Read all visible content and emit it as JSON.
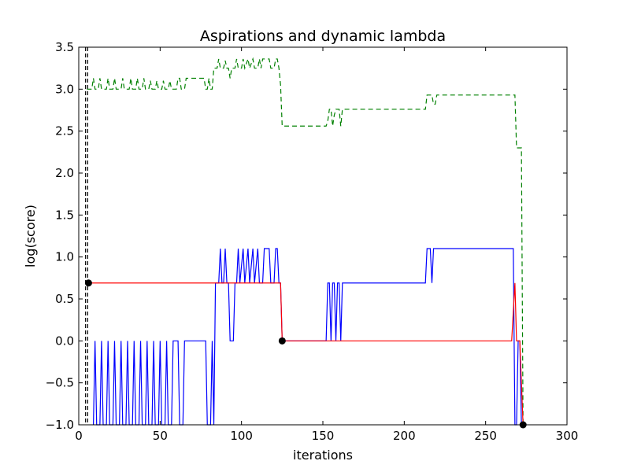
{
  "chart_data": {
    "type": "line",
    "title": "Aspirations and dynamic lambda",
    "xlabel": "iterations",
    "ylabel": "log(score)",
    "xlim": [
      0,
      300
    ],
    "ylim": [
      -1.0,
      3.5
    ],
    "grid": false,
    "legend": "none",
    "xticks": [
      0,
      50,
      100,
      150,
      200,
      250,
      300
    ],
    "yticks": [
      -1.0,
      -0.5,
      0.0,
      0.5,
      1.0,
      1.5,
      2.0,
      2.5,
      3.0,
      3.5
    ],
    "xtick_labels": [
      "0",
      "50",
      "100",
      "150",
      "200",
      "250",
      "300"
    ],
    "ytick_labels": [
      "−1.0",
      "−0.5",
      "0.0",
      "0.5",
      "1.0",
      "1.5",
      "2.0",
      "2.5",
      "3.0",
      "3.5"
    ],
    "vlines": [
      {
        "x": 4.2,
        "color": "#000000",
        "dash": true
      },
      {
        "x": 5.5,
        "color": "#000000",
        "dash": true
      }
    ],
    "series": [
      {
        "color": "#008000",
        "style": "dashed",
        "points": [
          [
            5,
            3
          ],
          [
            8,
            3
          ],
          [
            9,
            3.13
          ],
          [
            10,
            3
          ],
          [
            12,
            3
          ],
          [
            13,
            3.13
          ],
          [
            14,
            3
          ],
          [
            17,
            3
          ],
          [
            18,
            3.13
          ],
          [
            19,
            3
          ],
          [
            21,
            3
          ],
          [
            22,
            3.13
          ],
          [
            23,
            3
          ],
          [
            26,
            3
          ],
          [
            27,
            3.13
          ],
          [
            28,
            3
          ],
          [
            31,
            3
          ],
          [
            32,
            3.13
          ],
          [
            33,
            3
          ],
          [
            35,
            3
          ],
          [
            36,
            3.13
          ],
          [
            37,
            3
          ],
          [
            39,
            3
          ],
          [
            40,
            3.13
          ],
          [
            41,
            3
          ],
          [
            43,
            3
          ],
          [
            44,
            3.1
          ],
          [
            45,
            3
          ],
          [
            47,
            3
          ],
          [
            48,
            3.1
          ],
          [
            49,
            3
          ],
          [
            51,
            3
          ],
          [
            52,
            3.1
          ],
          [
            53,
            3
          ],
          [
            55,
            3
          ],
          [
            56,
            3.1
          ],
          [
            57,
            3
          ],
          [
            60,
            3
          ],
          [
            61,
            3.13
          ],
          [
            62,
            3.13
          ],
          [
            63,
            3
          ],
          [
            65,
            3
          ],
          [
            66,
            3.13
          ],
          [
            77,
            3.13
          ],
          [
            78,
            3
          ],
          [
            79,
            3
          ],
          [
            80,
            3.13
          ],
          [
            81,
            3
          ],
          [
            82,
            3
          ],
          [
            83,
            3.25
          ],
          [
            85,
            3.25
          ],
          [
            86,
            3.36
          ],
          [
            87,
            3.25
          ],
          [
            89,
            3.25
          ],
          [
            90,
            3.34
          ],
          [
            91,
            3.25
          ],
          [
            92,
            3.25
          ],
          [
            93,
            3.13
          ],
          [
            94,
            3.25
          ],
          [
            96,
            3.25
          ],
          [
            97,
            3.36
          ],
          [
            98,
            3.25
          ],
          [
            100,
            3.25
          ],
          [
            101,
            3.36
          ],
          [
            102,
            3.25
          ],
          [
            104,
            3.36
          ],
          [
            105,
            3.25
          ],
          [
            107,
            3.36
          ],
          [
            108,
            3.25
          ],
          [
            110,
            3.25
          ],
          [
            111,
            3.36
          ],
          [
            112,
            3.25
          ],
          [
            113,
            3.36
          ],
          [
            117,
            3.36
          ],
          [
            118,
            3.25
          ],
          [
            120,
            3.25
          ],
          [
            121,
            3.36
          ],
          [
            122,
            3.36
          ],
          [
            123,
            3.25
          ],
          [
            124,
            3.05
          ],
          [
            125,
            2.56
          ],
          [
            152,
            2.56
          ],
          [
            153,
            2.62
          ],
          [
            154,
            2.76
          ],
          [
            155,
            2.76
          ],
          [
            156,
            2.56
          ],
          [
            157,
            2.69
          ],
          [
            158,
            2.76
          ],
          [
            160,
            2.76
          ],
          [
            161,
            2.56
          ],
          [
            162,
            2.76
          ],
          [
            212,
            2.76
          ],
          [
            213,
            2.76
          ],
          [
            214,
            2.93
          ],
          [
            217,
            2.93
          ],
          [
            218,
            2.82
          ],
          [
            219,
            2.82
          ],
          [
            220,
            2.93
          ],
          [
            267,
            2.93
          ],
          [
            268,
            2.93
          ],
          [
            269,
            2.3
          ],
          [
            270,
            2.3
          ],
          [
            271,
            2.3
          ],
          [
            272,
            2.3
          ],
          [
            273,
            -1
          ]
        ]
      },
      {
        "color": "#0000ff",
        "style": "solid",
        "points": [
          [
            9,
            -1
          ],
          [
            10,
            0
          ],
          [
            11,
            -1
          ],
          [
            13,
            -1
          ],
          [
            14,
            0
          ],
          [
            15,
            -1
          ],
          [
            17,
            -1
          ],
          [
            18,
            0
          ],
          [
            19,
            -1
          ],
          [
            21,
            -1
          ],
          [
            22,
            0
          ],
          [
            23,
            -1
          ],
          [
            25,
            -1
          ],
          [
            26,
            0
          ],
          [
            27,
            -1
          ],
          [
            29,
            -1
          ],
          [
            30,
            0
          ],
          [
            31,
            -1
          ],
          [
            33,
            -1
          ],
          [
            34,
            0
          ],
          [
            35,
            -1
          ],
          [
            37,
            -1
          ],
          [
            38,
            0
          ],
          [
            39,
            -1
          ],
          [
            41,
            -1
          ],
          [
            42,
            0
          ],
          [
            43,
            -1
          ],
          [
            45,
            -1
          ],
          [
            46,
            0
          ],
          [
            47,
            -1
          ],
          [
            49,
            -1
          ],
          [
            50,
            0
          ],
          [
            51,
            -1
          ],
          [
            53,
            -1
          ],
          [
            54,
            0
          ],
          [
            55,
            -1
          ],
          [
            57,
            -1
          ],
          [
            58,
            0
          ],
          [
            61,
            0
          ],
          [
            62,
            -1
          ],
          [
            64,
            -1
          ],
          [
            65,
            0
          ],
          [
            78,
            0
          ],
          [
            79,
            -1
          ],
          [
            81,
            -1
          ],
          [
            82,
            0
          ],
          [
            83,
            -1
          ],
          [
            84,
            0.69
          ],
          [
            86,
            0.69
          ],
          [
            87,
            1.1
          ],
          [
            88,
            0.69
          ],
          [
            89,
            0.69
          ],
          [
            90,
            1.1
          ],
          [
            91,
            0.69
          ],
          [
            92,
            0.69
          ],
          [
            93,
            0
          ],
          [
            95,
            0
          ],
          [
            96,
            0.69
          ],
          [
            97,
            0.69
          ],
          [
            98,
            1.1
          ],
          [
            99,
            0.69
          ],
          [
            101,
            1.1
          ],
          [
            102,
            0.69
          ],
          [
            104,
            1.1
          ],
          [
            105,
            0.69
          ],
          [
            107,
            1.1
          ],
          [
            108,
            0.69
          ],
          [
            110,
            1.1
          ],
          [
            111,
            0.69
          ],
          [
            113,
            0.69
          ],
          [
            114,
            1.1
          ],
          [
            117,
            1.1
          ],
          [
            118,
            0.69
          ],
          [
            120,
            0.69
          ],
          [
            121,
            1.1
          ],
          [
            122,
            1.1
          ],
          [
            123,
            0.69
          ],
          [
            124,
            0.69
          ],
          [
            125,
            0
          ],
          [
            151,
            0
          ],
          [
            152,
            0
          ],
          [
            153,
            0.69
          ],
          [
            154,
            0.69
          ],
          [
            155,
            0
          ],
          [
            156,
            0.69
          ],
          [
            157,
            0.69
          ],
          [
            158,
            0
          ],
          [
            159,
            0.69
          ],
          [
            160,
            0.69
          ],
          [
            161,
            0
          ],
          [
            162,
            0.69
          ],
          [
            212,
            0.69
          ],
          [
            213,
            0.69
          ],
          [
            214,
            1.1
          ],
          [
            216,
            1.1
          ],
          [
            217,
            0.69
          ],
          [
            218,
            1.1
          ],
          [
            267,
            1.1
          ],
          [
            268,
            -1
          ],
          [
            269,
            -1
          ],
          [
            270,
            0
          ],
          [
            271,
            0
          ],
          [
            272,
            -1
          ],
          [
            273,
            -1
          ]
        ]
      },
      {
        "color": "#ff0000",
        "style": "solid",
        "points": [
          [
            6,
            0.69
          ],
          [
            124,
            0.69
          ],
          [
            125,
            0
          ],
          [
            266,
            0
          ],
          [
            268,
            0.69
          ],
          [
            269,
            0
          ],
          [
            271,
            0
          ],
          [
            273,
            -1
          ]
        ]
      }
    ],
    "markers": [
      [
        6,
        0.69
      ],
      [
        125,
        0
      ],
      [
        273,
        -1
      ]
    ]
  }
}
